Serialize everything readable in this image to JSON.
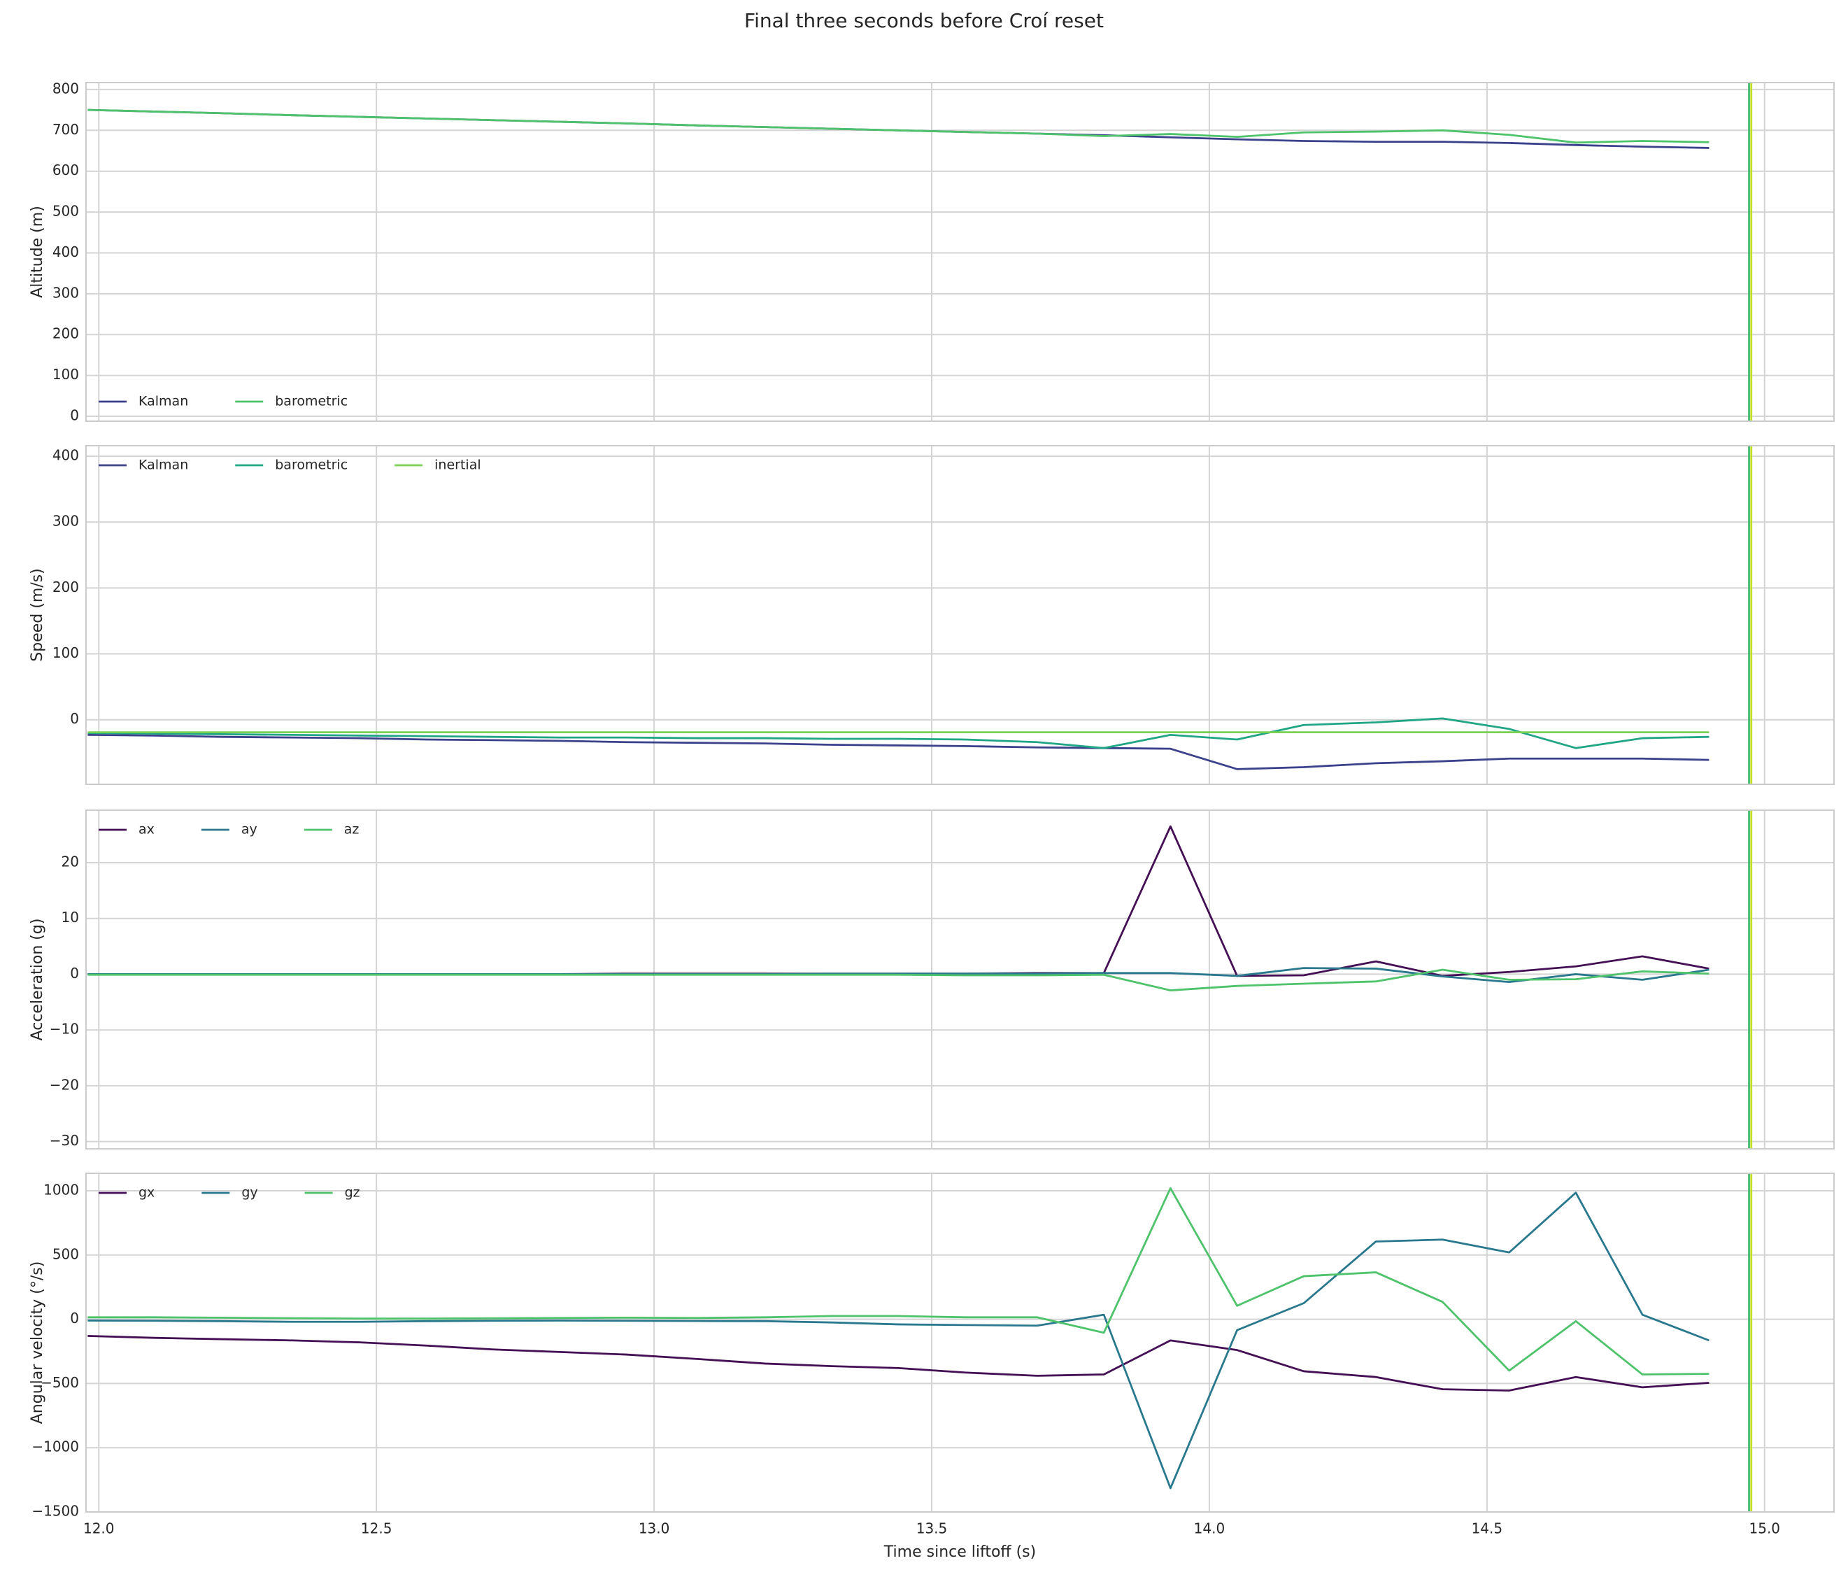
{
  "title": "Final three seconds before Croí reset",
  "chart_data": [
    {
      "type": "line",
      "y_label": "Altitude (m)",
      "legend_loc": "lower left",
      "grid": true,
      "xtick_labels": false,
      "x": [
        11.98,
        12.1,
        12.22,
        12.35,
        12.47,
        12.59,
        12.71,
        12.83,
        12.95,
        13.08,
        13.2,
        13.32,
        13.44,
        13.56,
        13.69,
        13.81,
        13.93,
        14.05,
        14.17,
        14.3,
        14.42,
        14.54,
        14.66,
        14.78,
        14.9
      ],
      "xlim": [
        11.977,
        15.125
      ],
      "xticks": [
        {
          "value": 12,
          "label": "12.0"
        },
        12.5,
        {
          "value": 13,
          "label": "13.0"
        },
        13.5,
        {
          "value": 14,
          "label": "14.0"
        },
        14.5,
        {
          "value": 15,
          "label": "15.0"
        }
      ],
      "ylim": [
        -12,
        817
      ],
      "yticks": [
        0,
        100,
        200,
        300,
        400,
        500,
        600,
        700,
        800
      ],
      "vlines": [
        {
          "x": 14.972,
          "color": "#3fbc73"
        },
        {
          "x": 14.976,
          "color": "#c2df23"
        }
      ],
      "series": [
        {
          "name": "Kalman",
          "color": "#3b418a",
          "values": [
            750,
            746,
            742,
            737,
            733,
            729,
            725,
            721,
            717,
            712,
            708,
            704,
            700,
            696,
            692,
            688,
            683,
            678,
            674,
            672,
            672,
            669,
            664,
            660,
            657
          ]
        },
        {
          "name": "barometric",
          "color": "#4ec36b",
          "values": [
            750,
            746,
            742,
            737,
            733,
            729,
            725,
            721,
            717,
            712,
            708,
            704,
            700,
            696,
            692,
            686,
            691,
            684,
            695,
            697,
            700,
            689,
            670,
            674,
            671
          ]
        }
      ]
    },
    {
      "type": "line",
      "y_label": "Speed (m/s)",
      "legend_loc": "upper left",
      "grid": true,
      "xtick_labels": false,
      "x": [
        11.98,
        12.1,
        12.22,
        12.35,
        12.47,
        12.59,
        12.71,
        12.83,
        12.95,
        13.08,
        13.2,
        13.32,
        13.44,
        13.56,
        13.69,
        13.81,
        13.93,
        14.05,
        14.17,
        14.3,
        14.42,
        14.54,
        14.66,
        14.78,
        14.9
      ],
      "xlim": [
        11.977,
        15.125
      ],
      "xticks": [
        {
          "value": 12,
          "label": "12.0"
        },
        12.5,
        {
          "value": 13,
          "label": "13.0"
        },
        13.5,
        {
          "value": 14,
          "label": "14.0"
        },
        14.5,
        {
          "value": 15,
          "label": "15.0"
        }
      ],
      "ylim": [
        -98,
        416
      ],
      "yticks": [
        0,
        100,
        200,
        300,
        400
      ],
      "vlines": [
        {
          "x": 14.972,
          "color": "#3fbc73"
        },
        {
          "x": 14.976,
          "color": "#c2df23"
        }
      ],
      "series": [
        {
          "name": "Kalman",
          "color": "#3b418a",
          "values": [
            -23,
            -24,
            -26,
            -27,
            -28,
            -30,
            -31,
            -32,
            -34,
            -35,
            -36,
            -38,
            -39,
            -40,
            -42,
            -43,
            -44,
            -75,
            -72,
            -66,
            -63,
            -59,
            -59,
            -59,
            -61
          ]
        },
        {
          "name": "barometric",
          "color": "#21a685",
          "values": [
            -20,
            -21,
            -22,
            -23,
            -24,
            -25,
            -26,
            -27,
            -27,
            -28,
            -28,
            -29,
            -29,
            -30,
            -34,
            -43,
            -23,
            -30,
            -8,
            -4,
            2,
            -14,
            -43,
            -28,
            -26
          ]
        },
        {
          "name": "inertial",
          "color": "#7ad151",
          "values": [
            -19,
            -19,
            -19,
            -19,
            -19,
            -19,
            -19,
            -19,
            -19,
            -19,
            -19,
            -19,
            -19,
            -19,
            -19,
            -19,
            -19,
            -19,
            -19,
            -19,
            -19,
            -19,
            -19,
            -19,
            -19
          ]
        }
      ]
    },
    {
      "type": "line",
      "y_label": "Acceleration (g)",
      "legend_loc": "upper left",
      "grid": true,
      "xtick_labels": false,
      "x": [
        11.98,
        12.1,
        12.22,
        12.35,
        12.47,
        12.59,
        12.71,
        12.83,
        12.95,
        13.08,
        13.2,
        13.32,
        13.44,
        13.56,
        13.69,
        13.81,
        13.93,
        14.05,
        14.17,
        14.3,
        14.42,
        14.54,
        14.66,
        14.78,
        14.9
      ],
      "xlim": [
        11.977,
        15.125
      ],
      "xticks": [
        {
          "value": 12,
          "label": "12.0"
        },
        12.5,
        {
          "value": 13,
          "label": "13.0"
        },
        13.5,
        {
          "value": 14,
          "label": "14.0"
        },
        14.5,
        {
          "value": 15,
          "label": "15.0"
        }
      ],
      "ylim": [
        -31.3,
        29.4
      ],
      "yticks": [
        {
          "value": -30,
          "label": "−30"
        },
        {
          "value": -20,
          "label": "−20"
        },
        {
          "value": -10,
          "label": "−10"
        },
        0,
        10,
        20
      ],
      "vlines": [
        {
          "x": 14.972,
          "color": "#3fbc73"
        },
        {
          "x": 14.976,
          "color": "#c2df23"
        }
      ],
      "series": [
        {
          "name": "ax",
          "color": "#440f54",
          "values": [
            0,
            0,
            0,
            0,
            0,
            0,
            0,
            0,
            0.1,
            0.1,
            0.1,
            0.1,
            0.1,
            0.1,
            0.2,
            0.2,
            26.5,
            -0.3,
            -0.2,
            2.3,
            -0.3,
            0.4,
            1.4,
            3.2,
            1.0
          ]
        },
        {
          "name": "ay",
          "color": "#2a788e",
          "values": [
            0,
            0,
            0,
            0,
            0,
            0,
            0,
            0,
            0,
            0,
            0,
            0.1,
            0.1,
            0.1,
            0.1,
            0.2,
            0.2,
            -0.3,
            1.1,
            1.0,
            -0.4,
            -1.4,
            0,
            -1.0,
            0.8
          ]
        },
        {
          "name": "az",
          "color": "#4ec36b",
          "values": [
            -0.1,
            -0.1,
            -0.1,
            -0.1,
            -0.1,
            -0.1,
            -0.1,
            -0.1,
            -0.1,
            -0.1,
            -0.1,
            -0.1,
            -0.1,
            -0.2,
            -0.2,
            -0.1,
            -2.9,
            -2.1,
            -1.7,
            -1.3,
            0.8,
            -1.0,
            -0.9,
            0.5,
            0.1
          ]
        }
      ]
    },
    {
      "type": "line",
      "y_label": "Angular velocity (°/s)",
      "x_label": "Time since liftoff (s)",
      "legend_loc": "upper left",
      "grid": true,
      "xtick_labels": true,
      "x": [
        11.98,
        12.1,
        12.22,
        12.35,
        12.47,
        12.59,
        12.71,
        12.83,
        12.95,
        13.08,
        13.2,
        13.32,
        13.44,
        13.56,
        13.69,
        13.81,
        13.93,
        14.05,
        14.17,
        14.3,
        14.42,
        14.54,
        14.66,
        14.78,
        14.9
      ],
      "xlim": [
        11.977,
        15.125
      ],
      "xticks": [
        {
          "value": 12,
          "label": "12.0"
        },
        12.5,
        {
          "value": 13,
          "label": "13.0"
        },
        13.5,
        {
          "value": 14,
          "label": "14.0"
        },
        14.5,
        {
          "value": 15,
          "label": "15.0"
        }
      ],
      "ylim": [
        -1500,
        1136
      ],
      "yticks": [
        {
          "value": -1500,
          "label": "−1500"
        },
        {
          "value": -1000,
          "label": "−1000"
        },
        {
          "value": -500,
          "label": "−500"
        },
        0,
        500,
        1000
      ],
      "vlines": [
        {
          "x": 14.972,
          "color": "#3fbc73"
        },
        {
          "x": 14.976,
          "color": "#c2df23"
        }
      ],
      "series": [
        {
          "name": "gx",
          "color": "#440f54",
          "values": [
            -130,
            -145,
            -155,
            -165,
            -180,
            -205,
            -235,
            -255,
            -275,
            -310,
            -345,
            -365,
            -380,
            -415,
            -440,
            -430,
            -165,
            -240,
            -405,
            -450,
            -545,
            -555,
            -450,
            -530,
            -495
          ]
        },
        {
          "name": "gy",
          "color": "#2a788e",
          "values": [
            -10,
            -12,
            -15,
            -20,
            -20,
            -15,
            -12,
            -10,
            -12,
            -14,
            -15,
            -25,
            -40,
            -45,
            -50,
            35,
            -1315,
            -85,
            125,
            605,
            620,
            520,
            985,
            35,
            -165
          ]
        },
        {
          "name": "gz",
          "color": "#4ec36b",
          "values": [
            15,
            15,
            12,
            8,
            5,
            5,
            7,
            10,
            12,
            10,
            15,
            25,
            25,
            15,
            15,
            -105,
            1020,
            105,
            335,
            365,
            135,
            -400,
            -15,
            -430,
            -425
          ]
        }
      ]
    }
  ]
}
